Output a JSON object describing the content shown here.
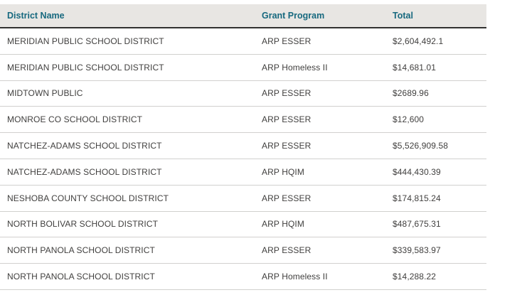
{
  "table": {
    "columns": [
      {
        "key": "district",
        "label": "District Name"
      },
      {
        "key": "program",
        "label": "Grant Program"
      },
      {
        "key": "total",
        "label": "Total"
      }
    ],
    "rows": [
      {
        "district": "MERIDIAN PUBLIC SCHOOL DISTRICT",
        "program": "ARP ESSER",
        "total": "$2,604,492.1"
      },
      {
        "district": "MERIDIAN PUBLIC SCHOOL DISTRICT",
        "program": "ARP Homeless II",
        "total": "$14,681.01"
      },
      {
        "district": "MIDTOWN PUBLIC",
        "program": "ARP ESSER",
        "total": "$2689.96"
      },
      {
        "district": "MONROE CO SCHOOL DISTRICT",
        "program": "ARP ESSER",
        "total": "$12,600"
      },
      {
        "district": "NATCHEZ-ADAMS SCHOOL DISTRICT",
        "program": "ARP ESSER",
        "total": "$5,526,909.58"
      },
      {
        "district": "NATCHEZ-ADAMS SCHOOL DISTRICT",
        "program": "ARP HQIM",
        "total": "$444,430.39"
      },
      {
        "district": "NESHOBA COUNTY SCHOOL DISTRICT",
        "program": "ARP ESSER",
        "total": "$174,815.24"
      },
      {
        "district": "NORTH BOLIVAR SCHOOL DISTRICT",
        "program": "ARP HQIM",
        "total": "$487,675.31"
      },
      {
        "district": "NORTH PANOLA SCHOOL DISTRICT",
        "program": "ARP ESSER",
        "total": "$339,583.97"
      },
      {
        "district": "NORTH PANOLA SCHOOL DISTRICT",
        "program": "ARP Homeless II",
        "total": "$14,288.22"
      }
    ]
  },
  "colors": {
    "header_bg": "#e8e6e3",
    "header_text": "#17697f",
    "header_border": "#323130",
    "row_border": "#d1d0ce",
    "body_text": "#403f3e",
    "page_bg": "#ffffff"
  }
}
